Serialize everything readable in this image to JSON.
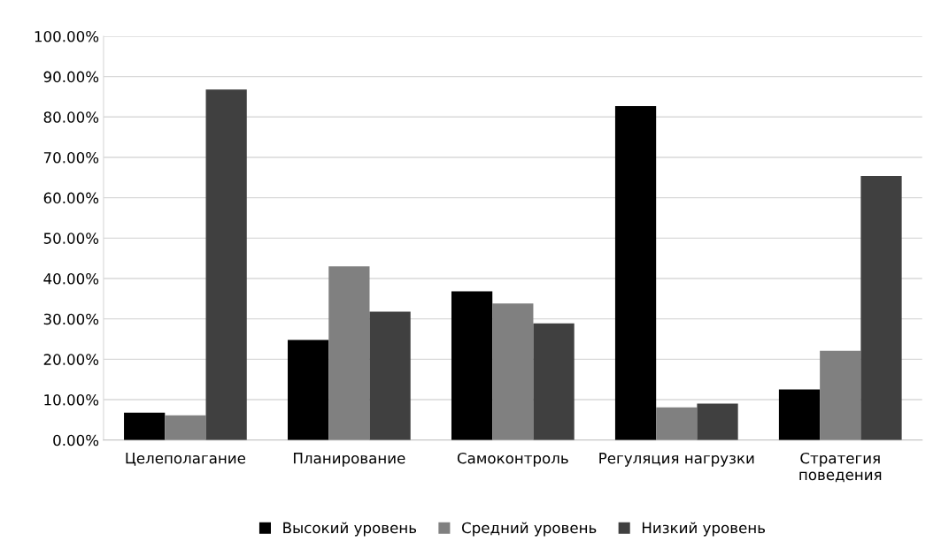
{
  "chart_data": {
    "type": "bar",
    "categories": [
      "Целеполагание",
      "Планирование",
      "Самоконтроль",
      "Регуляция нагрузки",
      "Стратегия поведения"
    ],
    "series": [
      {
        "name": "Высокий уровень",
        "color": "#000000",
        "values": [
          6.8,
          24.8,
          36.8,
          82.7,
          12.5
        ]
      },
      {
        "name": "Средний уровень",
        "color": "#808080",
        "values": [
          6.1,
          43.0,
          33.8,
          8.1,
          22.1
        ]
      },
      {
        "name": "Низкий уровень",
        "color": "#404040",
        "values": [
          86.8,
          31.8,
          28.9,
          9.0,
          65.4
        ]
      }
    ],
    "ylim": [
      0,
      100
    ],
    "yticks": [
      {
        "value": 0,
        "label": "0.00%"
      },
      {
        "value": 10,
        "label": "10.00%"
      },
      {
        "value": 20,
        "label": "20.00%"
      },
      {
        "value": 30,
        "label": "30.00%"
      },
      {
        "value": 40,
        "label": "40.00%"
      },
      {
        "value": 50,
        "label": "50.00%"
      },
      {
        "value": 60,
        "label": "60.00%"
      },
      {
        "value": 70,
        "label": "70.00%"
      },
      {
        "value": 80,
        "label": "80.00%"
      },
      {
        "value": 90,
        "label": "90.00%"
      },
      {
        "value": 100,
        "label": "100.00%"
      }
    ],
    "grid": "y",
    "legend": "bottom"
  }
}
